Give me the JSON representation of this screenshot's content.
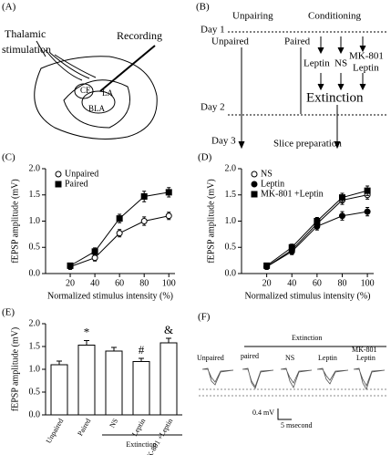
{
  "panel_a": {
    "label": "(A)",
    "texts": [
      "Thalamic",
      "stimulation",
      "Recording",
      "CE",
      "LA",
      "BLA"
    ]
  },
  "panel_b": {
    "label": "(B)",
    "day1": "Day 1",
    "day2": "Day 2",
    "day3": "Day 3",
    "unpairing": "Unpairing",
    "conditioning": "Conditioning",
    "unpaired": "Unpaired",
    "paired": "Paired",
    "leptin": "Leptin",
    "ns": "NS",
    "mk": "MK-801",
    "mk_leptin": "Leptin",
    "extinction": "Extinction",
    "slice": "Slice preparation"
  },
  "panel_f": {
    "label": "(F)",
    "extinction": "Extinction",
    "groups": [
      "Unpaired",
      "paired",
      "NS",
      "Leptin",
      "MK-801",
      "Leptin"
    ],
    "scale_v": "0.4 mV",
    "scale_t": "5 msecond"
  },
  "chart_data": [
    {
      "type": "line",
      "panel": "(C)",
      "y_label": "fEPSP amplitude (mV)",
      "x_label": "Normalized stimulus intensity (%)",
      "x": [
        20,
        40,
        60,
        80,
        100
      ],
      "xlim": [
        0,
        105
      ],
      "xticks": [
        20,
        40,
        60,
        80,
        100
      ],
      "ylim": [
        0,
        2
      ],
      "yticks": [
        {
          "value": 0,
          "label": "0.0"
        },
        {
          "value": 0.5,
          "label": "0.5"
        },
        {
          "value": 1,
          "label": "1.0"
        },
        {
          "value": 1.5,
          "label": "1.5"
        },
        {
          "value": 2,
          "label": "2.0"
        }
      ],
      "series": [
        {
          "name": "Unpaired",
          "marker": "open-circle",
          "color": "#000",
          "values": [
            0.13,
            0.3,
            0.77,
            1.0,
            1.1
          ],
          "errors": [
            0.05,
            0.06,
            0.07,
            0.08,
            0.07
          ]
        },
        {
          "name": "Paired",
          "marker": "filled-square",
          "color": "#000",
          "values": [
            0.15,
            0.42,
            1.05,
            1.47,
            1.55
          ],
          "errors": [
            0.05,
            0.07,
            0.08,
            0.1,
            0.09
          ]
        }
      ]
    },
    {
      "type": "line",
      "panel": "(D)",
      "y_label": "fEPSP amplitude (mV)",
      "x_label": "Normalized stimulus intensity (%)",
      "x": [
        20,
        40,
        60,
        80,
        100
      ],
      "xlim": [
        0,
        105
      ],
      "xticks": [
        20,
        40,
        60,
        80,
        100
      ],
      "ylim": [
        0,
        2
      ],
      "yticks": [
        {
          "value": 0,
          "label": "0.0"
        },
        {
          "value": 0.5,
          "label": "0.5"
        },
        {
          "value": 1,
          "label": "1.0"
        },
        {
          "value": 1.5,
          "label": "1.5"
        },
        {
          "value": 2,
          "label": "2.0"
        }
      ],
      "series": [
        {
          "name": "NS",
          "marker": "open-circle",
          "color": "#000",
          "values": [
            0.13,
            0.45,
            0.95,
            1.4,
            1.5
          ],
          "errors": [
            0.05,
            0.06,
            0.07,
            0.08,
            0.08
          ]
        },
        {
          "name": "Leptin",
          "marker": "filled-circle",
          "color": "#000",
          "values": [
            0.13,
            0.42,
            0.9,
            1.1,
            1.18
          ],
          "errors": [
            0.05,
            0.06,
            0.07,
            0.08,
            0.08
          ]
        },
        {
          "name": "MK-801 +Leptin",
          "marker": "filled-square",
          "color": "#000",
          "values": [
            0.15,
            0.5,
            1.0,
            1.45,
            1.58
          ],
          "errors": [
            0.05,
            0.06,
            0.07,
            0.08,
            0.09
          ]
        }
      ]
    },
    {
      "type": "bar",
      "panel": "(E)",
      "y_label": "fEPSP amplitude (mV)",
      "group_label": "Extinction",
      "categories": [
        "Unpaired",
        "Paired",
        "NS",
        "Leptin",
        "MK-801 +Leptin"
      ],
      "values": [
        1.1,
        1.53,
        1.4,
        1.17,
        1.58
      ],
      "errors": [
        0.08,
        0.1,
        0.08,
        0.07,
        0.1
      ],
      "annotations": [
        {
          "index": 1,
          "text": "*"
        },
        {
          "index": 3,
          "text": "#"
        },
        {
          "index": 4,
          "text": "&"
        }
      ],
      "ylim": [
        0,
        2
      ],
      "yticks": [
        {
          "value": 0,
          "label": "0.0"
        },
        {
          "value": 0.5,
          "label": "0.5"
        },
        {
          "value": 1,
          "label": "1.0"
        },
        {
          "value": 1.5,
          "label": "1.5"
        },
        {
          "value": 2,
          "label": "2.0"
        }
      ]
    }
  ]
}
